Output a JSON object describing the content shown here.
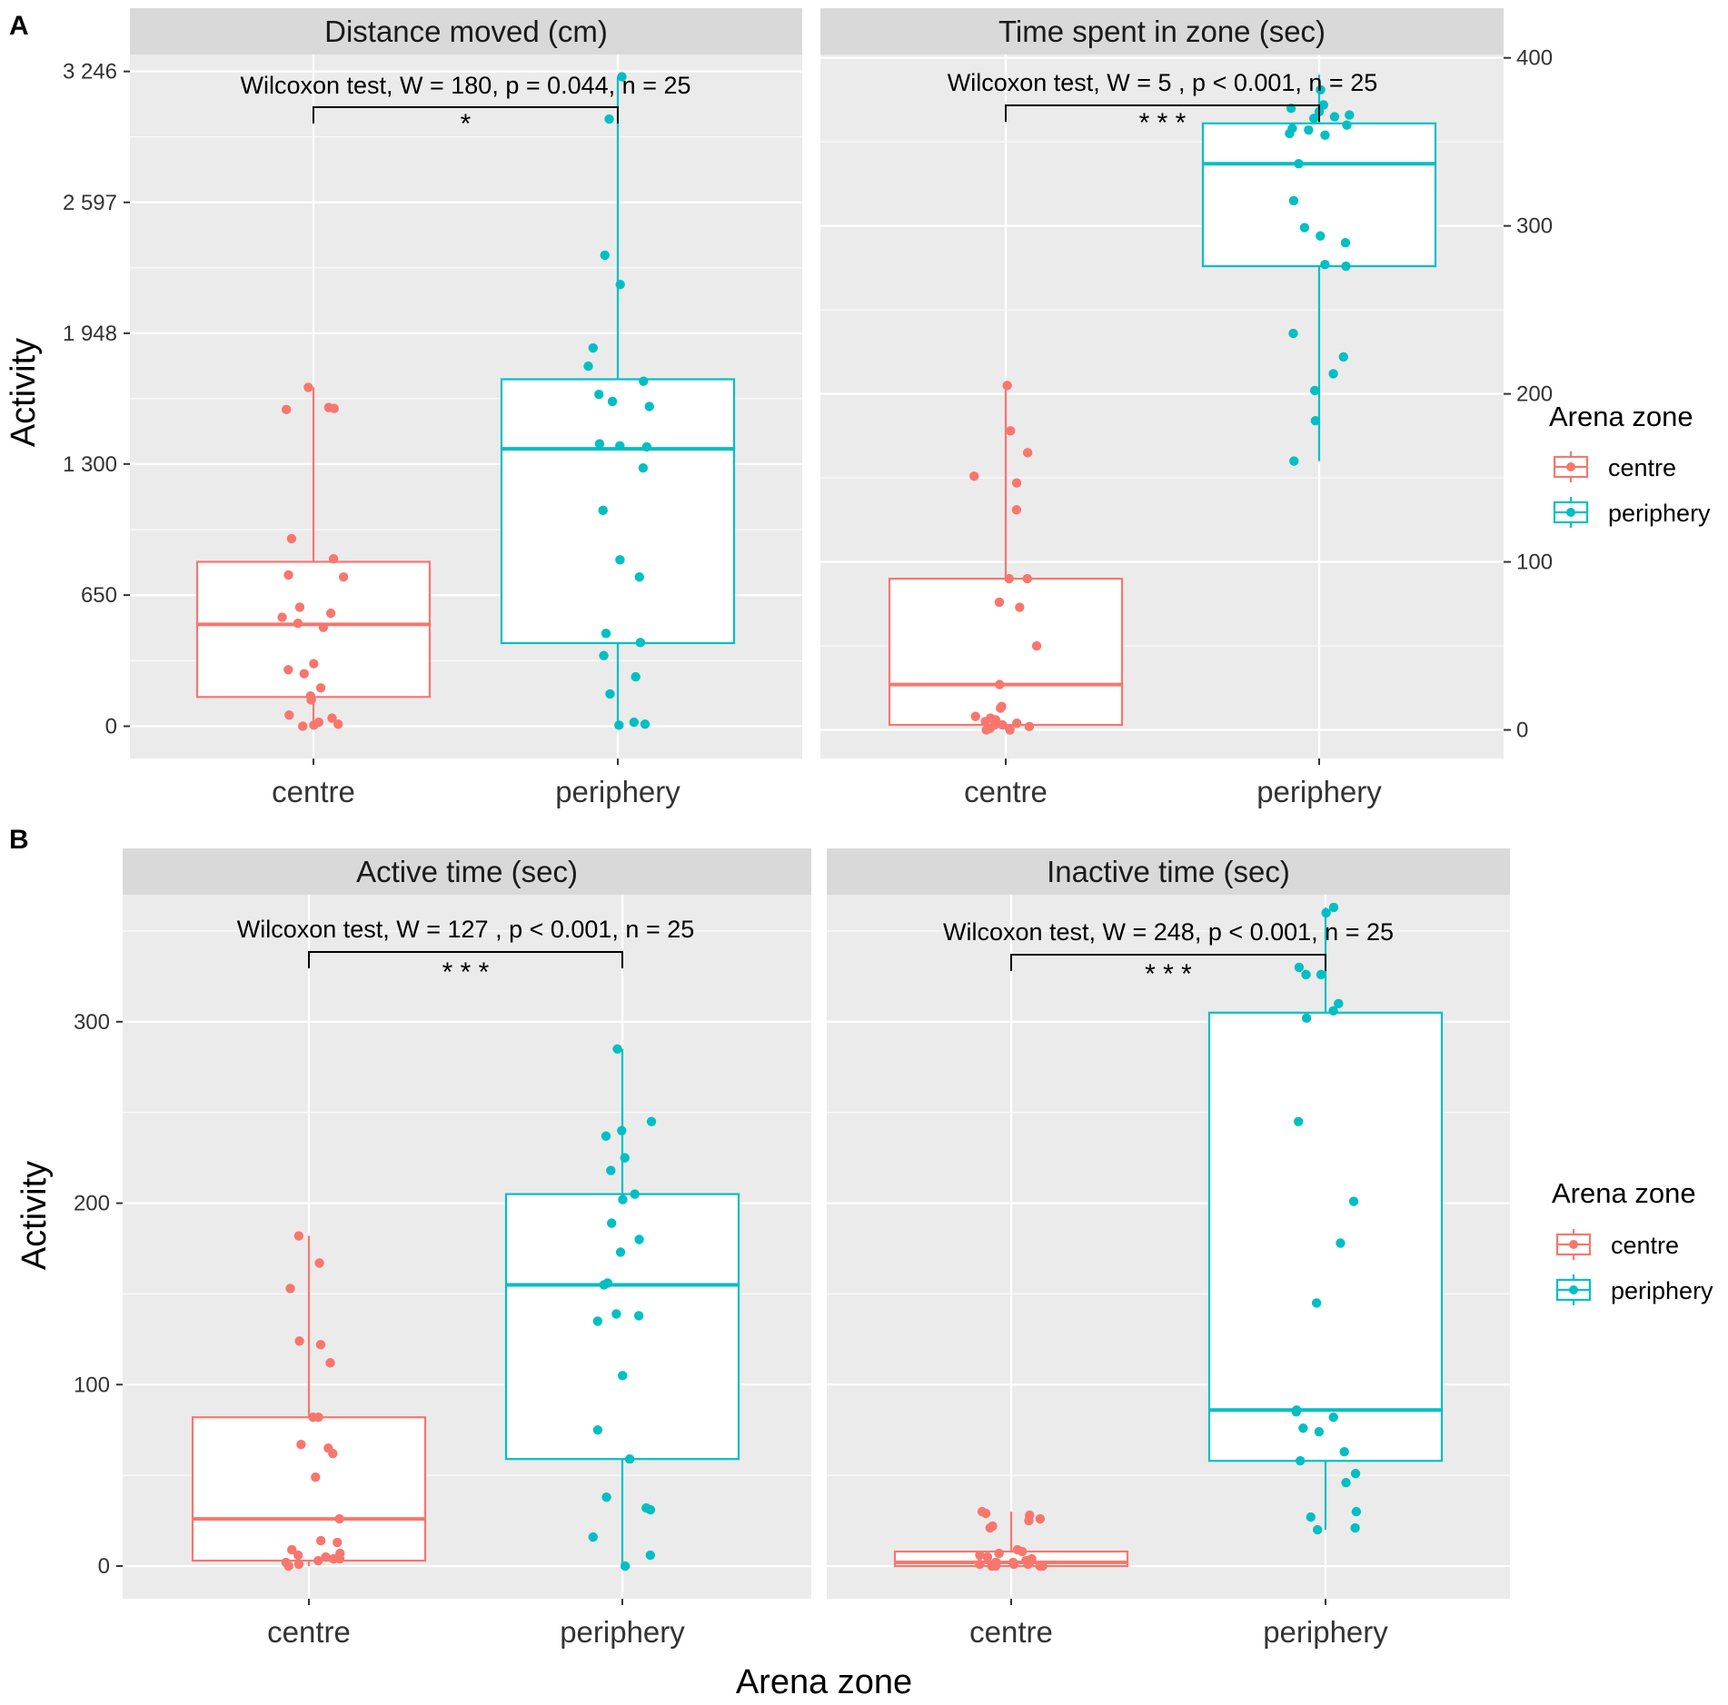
{
  "figure": {
    "x_axis_title": "Arena zone",
    "legend_title": "Arena zone",
    "legend_entries": [
      "centre",
      "periphery"
    ],
    "colors": {
      "centre": "#f8766d",
      "periphery": "#00bfc4"
    }
  },
  "chart_data": [
    {
      "type": "box",
      "row_tag": "A",
      "title": "Distance moved (cm)",
      "ylabel": "Activity",
      "ylim": [
        -160,
        3330
      ],
      "yticks": [
        0,
        650,
        1300,
        1948,
        2597,
        3246
      ],
      "ytick_labels": [
        "0",
        "650",
        "1 300",
        "1 948",
        "2 597",
        "3 246"
      ],
      "yaxis_side": "left",
      "categories": [
        "centre",
        "periphery"
      ],
      "boxes": [
        {
          "category": "centre",
          "min": 0,
          "q1": 145,
          "median": 505,
          "q3": 815,
          "max": 1680
        },
        {
          "category": "periphery",
          "min": 0,
          "q1": 412,
          "median": 1375,
          "q3": 1720,
          "max": 3220
        }
      ],
      "points": {
        "centre": [
          1580,
          1570,
          1680,
          1575,
          930,
          830,
          750,
          740,
          590,
          560,
          540,
          510,
          490,
          310,
          280,
          260,
          190,
          150,
          130,
          55,
          40,
          10,
          0,
          5,
          20
        ],
        "periphery": [
          3220,
          3010,
          2335,
          2190,
          1875,
          1785,
          1710,
          1645,
          1610,
          1585,
          1400,
          1390,
          1385,
          1280,
          1070,
          825,
          740,
          460,
          415,
          350,
          245,
          160,
          20,
          10,
          5
        ]
      },
      "annotation": "Wilcoxon test, W = 180, p = 0.044, n = 25",
      "significance": "*"
    },
    {
      "type": "box",
      "row_tag": "",
      "title": "Time spent in zone (sec)",
      "ylabel": "",
      "ylim": [
        -17,
        402
      ],
      "yticks": [
        0,
        100,
        200,
        300,
        400
      ],
      "ytick_labels": [
        "0",
        "100",
        "200",
        "300",
        "400"
      ],
      "yaxis_side": "right",
      "categories": [
        "centre",
        "periphery"
      ],
      "boxes": [
        {
          "category": "centre",
          "min": 0,
          "q1": 3,
          "median": 27,
          "q3": 90,
          "max": 205
        },
        {
          "category": "periphery",
          "min": 160,
          "q1": 276,
          "median": 337,
          "q3": 361,
          "max": 390
        }
      ],
      "points": {
        "centre": [
          205,
          178,
          165,
          151,
          147,
          131,
          90,
          90,
          76,
          73,
          50,
          27,
          14,
          13,
          8,
          6,
          5,
          3,
          2,
          1,
          0,
          0,
          4,
          7,
          3
        ],
        "periphery": [
          381,
          372,
          370,
          368,
          366,
          364,
          360,
          358,
          357,
          355,
          354,
          337,
          315,
          299,
          294,
          290,
          277,
          276,
          236,
          222,
          212,
          202,
          184,
          160,
          365
        ]
      },
      "annotation": "Wilcoxon test, W = 5 , p < 0.001, n = 25",
      "significance": "* * *"
    },
    {
      "type": "box",
      "row_tag": "B",
      "title": "Active time (sec)",
      "ylabel": "Activity",
      "ylim": [
        -18,
        370
      ],
      "yticks": [
        0,
        100,
        200,
        300
      ],
      "ytick_labels": [
        "0",
        "100",
        "200",
        "300"
      ],
      "yaxis_side": "left",
      "categories": [
        "centre",
        "periphery"
      ],
      "boxes": [
        {
          "category": "centre",
          "min": 0,
          "q1": 3,
          "median": 26,
          "q3": 82,
          "max": 182
        },
        {
          "category": "periphery",
          "min": 0,
          "q1": 59,
          "median": 155,
          "q3": 205,
          "max": 285
        }
      ],
      "points": {
        "centre": [
          182,
          167,
          153,
          124,
          122,
          112,
          82,
          82,
          67,
          65,
          62,
          49,
          26,
          14,
          13,
          9,
          7,
          5,
          4,
          3,
          2,
          1,
          0,
          4,
          6
        ],
        "periphery": [
          285,
          245,
          240,
          237,
          225,
          218,
          205,
          202,
          189,
          180,
          173,
          156,
          155,
          139,
          138,
          135,
          105,
          75,
          59,
          38,
          32,
          31,
          16,
          6,
          0
        ]
      },
      "annotation": "Wilcoxon test, W = 127 , p < 0.001, n = 25",
      "significance": "* * *"
    },
    {
      "type": "box",
      "row_tag": "",
      "title": "Inactive time (sec)",
      "ylabel": "",
      "ylim": [
        -18,
        370
      ],
      "yticks": [
        0,
        100,
        200,
        300
      ],
      "ytick_labels": [
        "",
        "",
        "",
        ""
      ],
      "yaxis_side": "none",
      "categories": [
        "centre",
        "periphery"
      ],
      "boxes": [
        {
          "category": "centre",
          "min": 0,
          "q1": 0,
          "median": 2,
          "q3": 8,
          "max": 30
        },
        {
          "category": "periphery",
          "min": 20,
          "q1": 58,
          "median": 86,
          "q3": 305,
          "max": 363
        }
      ],
      "points": {
        "centre": [
          30,
          29,
          28,
          26,
          25,
          22,
          21,
          9,
          8,
          7,
          6,
          5,
          4,
          3,
          2,
          2,
          1,
          1,
          0,
          0,
          0,
          1,
          2,
          3,
          0
        ],
        "periphery": [
          363,
          330,
          326,
          326,
          306,
          302,
          245,
          201,
          178,
          145,
          86,
          85,
          82,
          76,
          74,
          63,
          58,
          51,
          46,
          30,
          27,
          21,
          20,
          310,
          360
        ]
      },
      "annotation": "Wilcoxon test, W = 248, p < 0.001, n = 25",
      "significance": "* * *"
    }
  ]
}
